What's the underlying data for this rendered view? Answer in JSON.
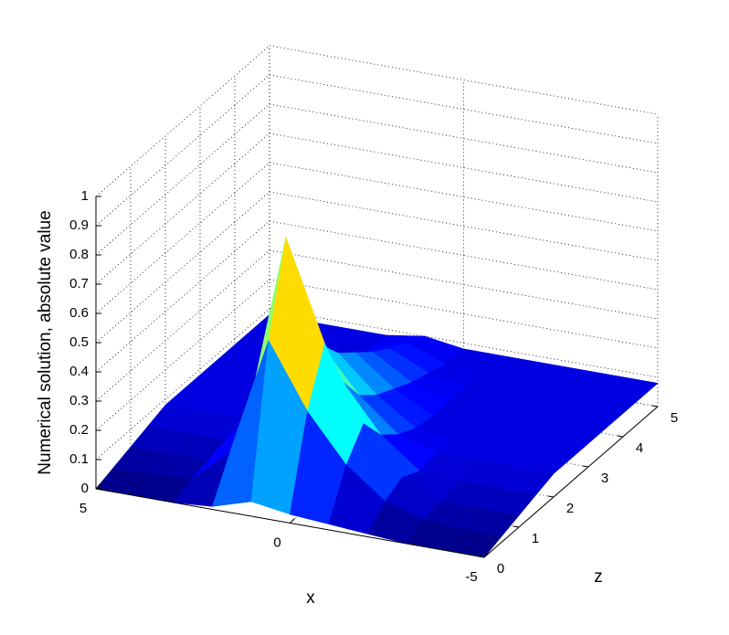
{
  "chart_data": {
    "type": "surface",
    "xlabel": "x",
    "ylabel": "z",
    "zlabel": "Numerical solution, absolute value",
    "x": [
      5,
      4,
      3,
      2,
      1,
      0,
      -1,
      -2,
      -3,
      -4,
      -5
    ],
    "y": [
      0,
      0.5,
      1,
      1.5,
      2,
      2.5,
      3,
      3.5,
      4,
      4.5,
      5
    ],
    "values": [
      [
        0,
        0,
        0,
        0.01,
        0.05,
        0.03,
        0.02,
        0.01,
        0,
        0,
        0
      ],
      [
        0.02,
        0.02,
        0.03,
        0.14,
        0.55,
        0.33,
        0.17,
        0.07,
        0.03,
        0.02,
        0.02
      ],
      [
        0.04,
        0.04,
        0.04,
        0.21,
        0.85,
        0.51,
        0.26,
        0.1,
        0.04,
        0.04,
        0.04
      ],
      [
        0.06,
        0.06,
        0.06,
        0.14,
        0.55,
        0.33,
        0.17,
        0.07,
        0.06,
        0.06,
        0.06
      ],
      [
        0.08,
        0.08,
        0.08,
        0.1,
        0.38,
        0.23,
        0.12,
        0.08,
        0.08,
        0.08,
        0.08
      ],
      [
        0.08,
        0.08,
        0.08,
        0.08,
        0.3,
        0.18,
        0.09,
        0.08,
        0.08,
        0.08,
        0.08
      ],
      [
        0.08,
        0.08,
        0.08,
        0.08,
        0.25,
        0.15,
        0.08,
        0.08,
        0.08,
        0.08,
        0.08
      ],
      [
        0.08,
        0.08,
        0.08,
        0.08,
        0.2,
        0.12,
        0.08,
        0.08,
        0.08,
        0.08,
        0.08
      ],
      [
        0.08,
        0.08,
        0.08,
        0.08,
        0.16,
        0.1,
        0.08,
        0.08,
        0.08,
        0.08,
        0.08
      ],
      [
        0.08,
        0.08,
        0.08,
        0.08,
        0.13,
        0.08,
        0.08,
        0.08,
        0.08,
        0.08,
        0.08
      ],
      [
        0.08,
        0.08,
        0.08,
        0.08,
        0.1,
        0.08,
        0.08,
        0.08,
        0.08,
        0.08,
        0.08
      ]
    ],
    "xlim": [
      -5,
      5
    ],
    "xticks": [
      -5,
      0,
      5
    ],
    "ylim": [
      0,
      5
    ],
    "yticks": [
      0,
      1,
      2,
      3,
      4,
      5
    ],
    "zlim": [
      0,
      1
    ],
    "zticks": [
      0,
      0.1,
      0.2,
      0.3,
      0.4,
      0.5,
      0.6,
      0.7,
      0.8,
      0.9,
      1
    ],
    "colormap": "jet",
    "grid": true
  }
}
